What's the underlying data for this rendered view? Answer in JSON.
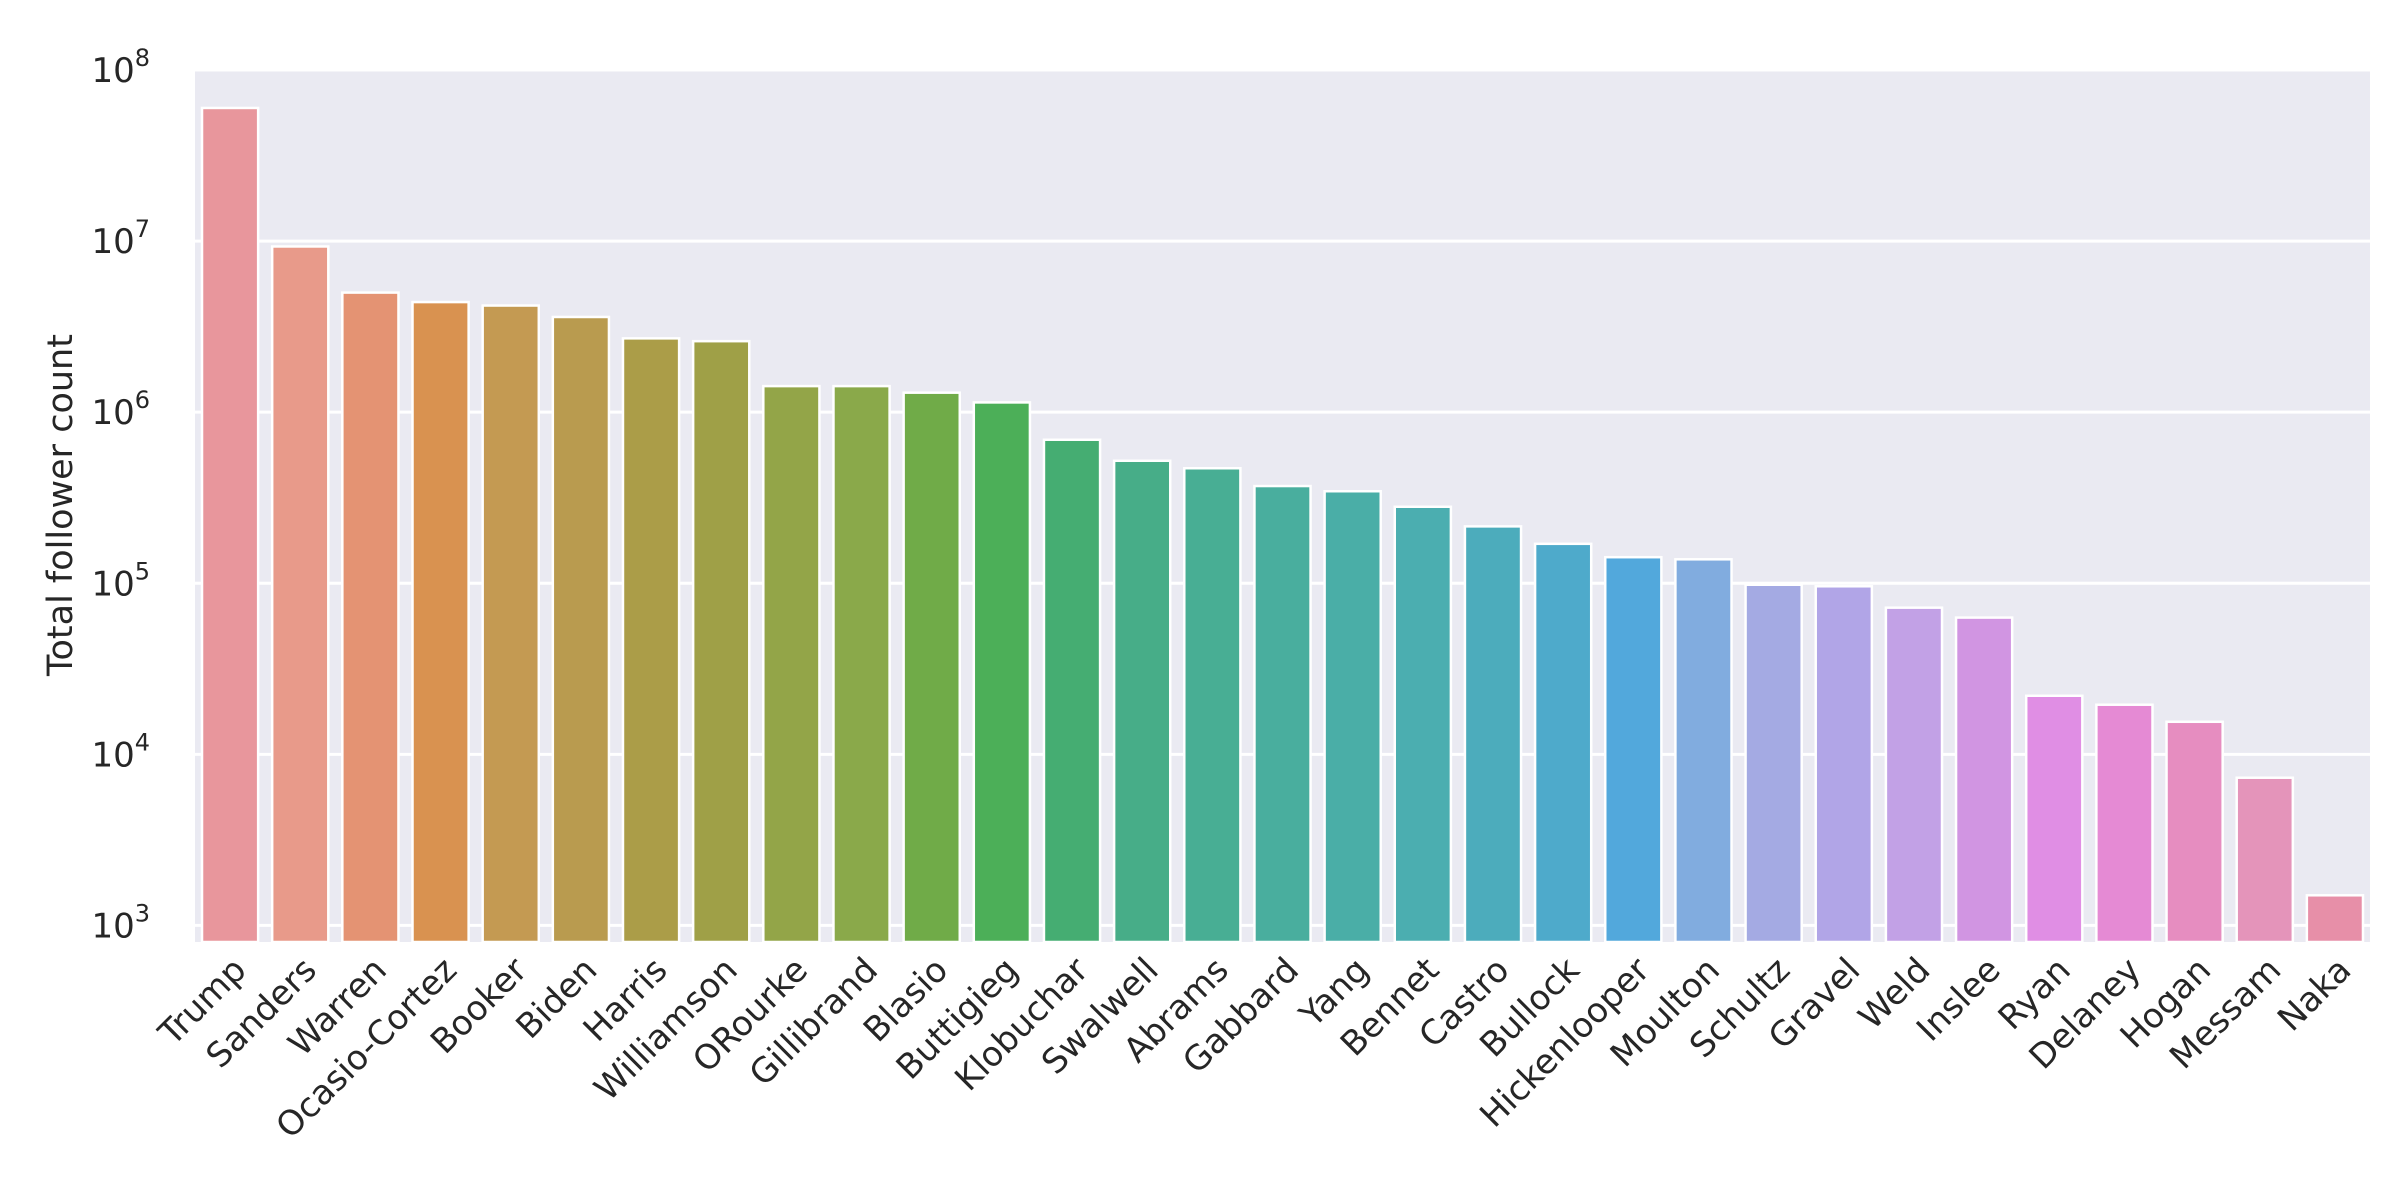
{
  "chart_data": {
    "type": "bar",
    "title": "",
    "xlabel": "",
    "ylabel": "Total follower count",
    "yscale": "log",
    "ylim": [
      800,
      100000000
    ],
    "yticks": [
      {
        "base": "10",
        "exp": "3",
        "value": 1000
      },
      {
        "base": "10",
        "exp": "4",
        "value": 10000
      },
      {
        "base": "10",
        "exp": "5",
        "value": 100000
      },
      {
        "base": "10",
        "exp": "6",
        "value": 1000000
      },
      {
        "base": "10",
        "exp": "7",
        "value": 10000000
      },
      {
        "base": "10",
        "exp": "8",
        "value": 100000000
      }
    ],
    "grid": true,
    "legend": "none",
    "categories": [
      "Trump",
      "Sanders",
      "Warren",
      "Ocasio-Cortez",
      "Booker",
      "Biden",
      "Harris",
      "Williamson",
      "ORourke",
      "Gillibrand",
      "Blasio",
      "Buttigieg",
      "Klobuchar",
      "Swalwell",
      "Abrams",
      "Gabbard",
      "Yang",
      "Bennet",
      "Castro",
      "Bullock",
      "Hickenlooper",
      "Moulton",
      "Schultz",
      "Gravel",
      "Weld",
      "Inslee",
      "Ryan",
      "Delaney",
      "Hogan",
      "Messam",
      "Naka"
    ],
    "values": [
      60000000,
      9300000,
      5000000,
      4400000,
      4200000,
      3600000,
      2700000,
      2600000,
      1420000,
      1420000,
      1300000,
      1140000,
      690000,
      520000,
      470000,
      370000,
      345000,
      280000,
      215000,
      170000,
      142000,
      138000,
      98000,
      96000,
      72000,
      63000,
      22000,
      19500,
      15500,
      7300,
      1500
    ],
    "colors": [
      "#e8969c",
      "#e89a8a",
      "#e49373",
      "#d99250",
      "#c49a52",
      "#b99b4f",
      "#ab9d48",
      "#9fa047",
      "#93a548",
      "#8aa94a",
      "#70ab48",
      "#4caf58",
      "#45ad72",
      "#47ad88",
      "#48ae94",
      "#49ae9e",
      "#4aaea7",
      "#4baeb0",
      "#4cacbc",
      "#4eaacb",
      "#52a8dc",
      "#81acdf",
      "#a4aae3",
      "#b1a5e7",
      "#c2a1e6",
      "#d195e2",
      "#e08ee4",
      "#e58ad4",
      "#e68dc0",
      "#e494ba",
      "#e78fa8"
    ]
  }
}
